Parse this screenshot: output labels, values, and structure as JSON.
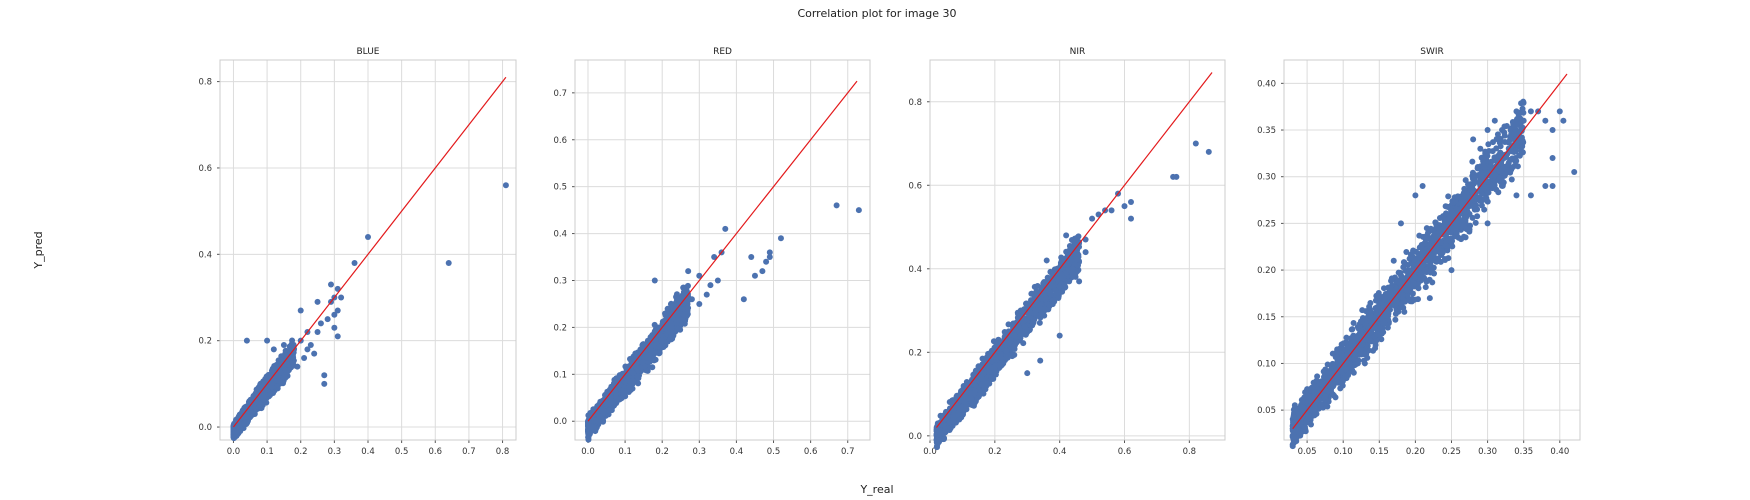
{
  "figure": {
    "title": "Correlation plot for image 30",
    "xlabel": "Y_real",
    "ylabel": "Y_pred"
  },
  "colors": {
    "points": "#4c72b0",
    "identity_line": "#e31a1c",
    "grid": "#dcdcdc"
  },
  "chart_data": [
    {
      "type": "scatter",
      "title": "BLUE",
      "xlim": [
        -0.04,
        0.84
      ],
      "ylim": [
        -0.03,
        0.85
      ],
      "xticks": [
        "0.0",
        "0.1",
        "0.2",
        "0.3",
        "0.4",
        "0.5",
        "0.6",
        "0.7",
        "0.8"
      ],
      "yticks": [
        "0.0",
        "0.2",
        "0.4",
        "0.6",
        "0.8"
      ],
      "identity_line": [
        0.0,
        0.81
      ],
      "dense_band": {
        "x": [
          0.0,
          0.18
        ],
        "center_offset": -0.01,
        "width": 0.045
      },
      "points": [
        [
          0.04,
          0.2
        ],
        [
          0.1,
          0.2
        ],
        [
          0.12,
          0.18
        ],
        [
          0.15,
          0.19
        ],
        [
          0.17,
          0.16
        ],
        [
          0.18,
          0.18
        ],
        [
          0.2,
          0.27
        ],
        [
          0.2,
          0.2
        ],
        [
          0.22,
          0.22
        ],
        [
          0.23,
          0.19
        ],
        [
          0.24,
          0.17
        ],
        [
          0.25,
          0.29
        ],
        [
          0.26,
          0.24
        ],
        [
          0.27,
          0.12
        ],
        [
          0.27,
          0.1
        ],
        [
          0.28,
          0.25
        ],
        [
          0.29,
          0.33
        ],
        [
          0.3,
          0.26
        ],
        [
          0.3,
          0.23
        ],
        [
          0.31,
          0.32
        ],
        [
          0.31,
          0.27
        ],
        [
          0.32,
          0.3
        ],
        [
          0.31,
          0.21
        ],
        [
          0.29,
          0.29
        ],
        [
          0.3,
          0.3
        ],
        [
          0.36,
          0.38
        ],
        [
          0.4,
          0.44
        ],
        [
          0.64,
          0.38
        ],
        [
          0.81,
          0.56
        ],
        [
          0.25,
          0.22
        ],
        [
          0.22,
          0.18
        ],
        [
          0.19,
          0.14
        ],
        [
          0.21,
          0.16
        ]
      ]
    },
    {
      "type": "scatter",
      "title": "RED",
      "xlim": [
        -0.035,
        0.76
      ],
      "ylim": [
        -0.04,
        0.77
      ],
      "xticks": [
        "0.0",
        "0.1",
        "0.2",
        "0.3",
        "0.4",
        "0.5",
        "0.6",
        "0.7"
      ],
      "yticks": [
        "0.0",
        "0.1",
        "0.2",
        "0.3",
        "0.4",
        "0.5",
        "0.6",
        "0.7"
      ],
      "identity_line": [
        0.0,
        0.725
      ],
      "dense_band": {
        "x": [
          0.0,
          0.27
        ],
        "center_offset": -0.015,
        "width": 0.055
      },
      "points": [
        [
          0.18,
          0.3
        ],
        [
          0.27,
          0.32
        ],
        [
          0.3,
          0.31
        ],
        [
          0.34,
          0.35
        ],
        [
          0.36,
          0.36
        ],
        [
          0.37,
          0.41
        ],
        [
          0.35,
          0.3
        ],
        [
          0.42,
          0.26
        ],
        [
          0.44,
          0.35
        ],
        [
          0.45,
          0.31
        ],
        [
          0.47,
          0.32
        ],
        [
          0.48,
          0.34
        ],
        [
          0.49,
          0.35
        ],
        [
          0.49,
          0.36
        ],
        [
          0.52,
          0.39
        ],
        [
          0.67,
          0.46
        ],
        [
          0.73,
          0.45
        ],
        [
          0.28,
          0.26
        ],
        [
          0.3,
          0.25
        ],
        [
          0.32,
          0.27
        ],
        [
          0.26,
          0.27
        ],
        [
          0.33,
          0.29
        ]
      ]
    },
    {
      "type": "scatter",
      "title": "NIR",
      "xlim": [
        0.0,
        0.91
      ],
      "ylim": [
        -0.01,
        0.9
      ],
      "xticks": [
        "0.0",
        "0.2",
        "0.4",
        "0.6",
        "0.8"
      ],
      "yticks": [
        "0.0",
        "0.2",
        "0.4",
        "0.6",
        "0.8"
      ],
      "identity_line": [
        0.02,
        0.87
      ],
      "dense_band": {
        "x": [
          0.02,
          0.46
        ],
        "center_offset": -0.02,
        "width": 0.07
      },
      "points": [
        [
          0.48,
          0.47
        ],
        [
          0.5,
          0.52
        ],
        [
          0.52,
          0.53
        ],
        [
          0.54,
          0.54
        ],
        [
          0.56,
          0.54
        ],
        [
          0.58,
          0.58
        ],
        [
          0.62,
          0.56
        ],
        [
          0.6,
          0.55
        ],
        [
          0.62,
          0.52
        ],
        [
          0.48,
          0.44
        ],
        [
          0.46,
          0.37
        ],
        [
          0.44,
          0.4
        ],
        [
          0.3,
          0.15
        ],
        [
          0.34,
          0.18
        ],
        [
          0.4,
          0.24
        ],
        [
          0.75,
          0.62
        ],
        [
          0.76,
          0.62
        ],
        [
          0.82,
          0.7
        ],
        [
          0.86,
          0.68
        ],
        [
          0.28,
          0.3
        ],
        [
          0.36,
          0.42
        ],
        [
          0.42,
          0.48
        ]
      ]
    },
    {
      "type": "scatter",
      "title": "SWIR",
      "xlim": [
        0.018,
        0.428
      ],
      "ylim": [
        0.018,
        0.425
      ],
      "xticks": [
        "0.05",
        "0.10",
        "0.15",
        "0.20",
        "0.25",
        "0.30",
        "0.35",
        "0.40"
      ],
      "yticks": [
        "0.05",
        "0.10",
        "0.15",
        "0.20",
        "0.25",
        "0.30",
        "0.35",
        "0.40"
      ],
      "identity_line": [
        0.03,
        0.41
      ],
      "dense_band": {
        "x": [
          0.03,
          0.35
        ],
        "center_offset": 0.0,
        "width": 0.05
      },
      "points": [
        [
          0.28,
          0.34
        ],
        [
          0.29,
          0.33
        ],
        [
          0.3,
          0.35
        ],
        [
          0.31,
          0.36
        ],
        [
          0.32,
          0.35
        ],
        [
          0.34,
          0.37
        ],
        [
          0.35,
          0.36
        ],
        [
          0.36,
          0.37
        ],
        [
          0.37,
          0.37
        ],
        [
          0.38,
          0.36
        ],
        [
          0.39,
          0.35
        ],
        [
          0.39,
          0.32
        ],
        [
          0.4,
          0.37
        ],
        [
          0.405,
          0.36
        ],
        [
          0.42,
          0.305
        ],
        [
          0.39,
          0.29
        ],
        [
          0.38,
          0.29
        ],
        [
          0.36,
          0.28
        ],
        [
          0.34,
          0.28
        ],
        [
          0.3,
          0.25
        ],
        [
          0.25,
          0.2
        ],
        [
          0.22,
          0.17
        ],
        [
          0.18,
          0.25
        ],
        [
          0.2,
          0.28
        ],
        [
          0.21,
          0.29
        ],
        [
          0.15,
          0.13
        ],
        [
          0.13,
          0.1
        ],
        [
          0.17,
          0.21
        ]
      ]
    }
  ]
}
